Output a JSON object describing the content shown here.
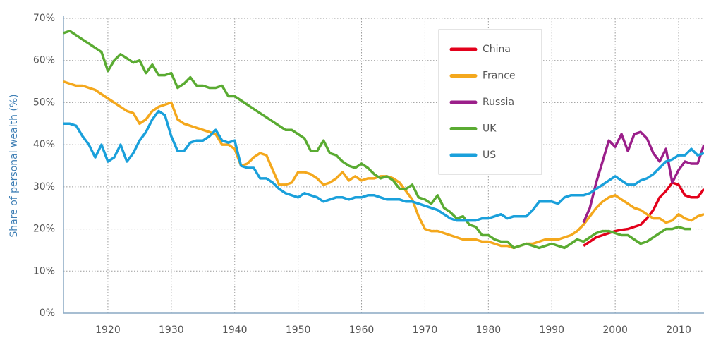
{
  "chart_data": {
    "type": "line",
    "y_label": "Share of personal wealth (%)",
    "xlim": [
      1913,
      2014
    ],
    "ylim": [
      0,
      70
    ],
    "xticks": [
      1920,
      1930,
      1940,
      1950,
      1960,
      1970,
      1980,
      1990,
      2000,
      2010
    ],
    "yticks": [
      {
        "value": 0,
        "label": "0%"
      },
      {
        "value": 10,
        "label": "10%"
      },
      {
        "value": 20,
        "label": "20%"
      },
      {
        "value": 30,
        "label": "30%"
      },
      {
        "value": 40,
        "label": "40%"
      },
      {
        "value": 50,
        "label": "50%"
      },
      {
        "value": 60,
        "label": "60%"
      },
      {
        "value": 70,
        "label": "70%"
      }
    ],
    "grid": true,
    "legend": "top-right",
    "series": [
      {
        "name": "China",
        "color": "#e3001b",
        "x": [
          1995,
          1996,
          1997,
          1998,
          1999,
          2000,
          2001,
          2002,
          2003,
          2004,
          2005,
          2006,
          2007,
          2008,
          2009,
          2010,
          2011,
          2012,
          2013,
          2014
        ],
        "values": [
          16,
          17,
          18,
          18.5,
          19,
          19.5,
          19.8,
          20,
          20.5,
          21,
          22.5,
          24.5,
          27.5,
          29,
          31,
          30.5,
          28,
          27.5,
          27.5,
          29.5
        ]
      },
      {
        "name": "France",
        "color": "#f4a81d",
        "x": [
          1913,
          1914,
          1915,
          1916,
          1917,
          1918,
          1919,
          1920,
          1921,
          1922,
          1923,
          1924,
          1925,
          1926,
          1927,
          1928,
          1929,
          1930,
          1931,
          1932,
          1933,
          1934,
          1935,
          1936,
          1937,
          1938,
          1939,
          1940,
          1941,
          1942,
          1943,
          1944,
          1945,
          1946,
          1947,
          1948,
          1949,
          1950,
          1951,
          1952,
          1953,
          1954,
          1955,
          1956,
          1957,
          1958,
          1959,
          1960,
          1961,
          1962,
          1963,
          1964,
          1965,
          1966,
          1967,
          1968,
          1969,
          1970,
          1971,
          1972,
          1973,
          1974,
          1975,
          1976,
          1977,
          1978,
          1979,
          1980,
          1981,
          1982,
          1983,
          1984,
          1985,
          1986,
          1987,
          1988,
          1989,
          1990,
          1991,
          1992,
          1993,
          1994,
          1995,
          1996,
          1997,
          1998,
          1999,
          2000,
          2001,
          2002,
          2003,
          2004,
          2005,
          2006,
          2007,
          2008,
          2009,
          2010,
          2011,
          2012,
          2013,
          2014
        ],
        "values": [
          55,
          54.5,
          54,
          54,
          53.5,
          53,
          52,
          51,
          50,
          49,
          48,
          47.5,
          45,
          46,
          48,
          49,
          49.5,
          50,
          46,
          45,
          44.5,
          44,
          43.5,
          43,
          42.5,
          40,
          40,
          39,
          35,
          35.5,
          37,
          38,
          37.5,
          34,
          30.5,
          30.5,
          31,
          33.5,
          33.5,
          33,
          32,
          30.5,
          31,
          32,
          33.5,
          31.5,
          32.5,
          31.5,
          32,
          32,
          32.5,
          32.5,
          32,
          31,
          29,
          27,
          23,
          20,
          19.5,
          19.5,
          19,
          18.5,
          18,
          17.5,
          17.5,
          17.5,
          17,
          17,
          16.5,
          16,
          16,
          15.5,
          16,
          16.5,
          16.5,
          17,
          17.5,
          17.5,
          17.5,
          18,
          18.5,
          19.5,
          21,
          23,
          25,
          26.5,
          27.5,
          28,
          27,
          26,
          25,
          24.5,
          23.5,
          22.5,
          22.5,
          21.5,
          22,
          23.5,
          22.5,
          22,
          23,
          23.5
        ]
      },
      {
        "name": "Russia",
        "color": "#9b1f8a",
        "x": [
          1995,
          1996,
          1997,
          1998,
          1999,
          2000,
          2001,
          2002,
          2003,
          2004,
          2005,
          2006,
          2007,
          2008,
          2009,
          2010,
          2011,
          2012,
          2013,
          2014
        ],
        "values": [
          21.5,
          25,
          31,
          36,
          41,
          39.5,
          42.5,
          38.5,
          42.5,
          43,
          41.5,
          38,
          36,
          39,
          31,
          34,
          36,
          35.5,
          35.5,
          40
        ]
      },
      {
        "name": "UK",
        "color": "#5aab32",
        "x": [
          1913,
          1914,
          1915,
          1916,
          1917,
          1918,
          1919,
          1920,
          1921,
          1922,
          1923,
          1924,
          1925,
          1926,
          1927,
          1928,
          1929,
          1930,
          1931,
          1932,
          1933,
          1934,
          1935,
          1936,
          1937,
          1938,
          1939,
          1940,
          1941,
          1942,
          1943,
          1944,
          1945,
          1946,
          1947,
          1948,
          1949,
          1950,
          1951,
          1952,
          1953,
          1954,
          1955,
          1956,
          1957,
          1958,
          1959,
          1960,
          1961,
          1962,
          1963,
          1964,
          1965,
          1966,
          1967,
          1968,
          1969,
          1970,
          1971,
          1972,
          1973,
          1974,
          1975,
          1976,
          1977,
          1978,
          1979,
          1980,
          1981,
          1982,
          1983,
          1984,
          1985,
          1986,
          1987,
          1988,
          1989,
          1990,
          1991,
          1992,
          1993,
          1994,
          1995,
          1996,
          1997,
          1998,
          1999,
          2000,
          2001,
          2002,
          2003,
          2004,
          2005,
          2006,
          2007,
          2008,
          2009,
          2010,
          2011,
          2012
        ],
        "values": [
          66.5,
          67,
          66,
          65,
          64,
          63,
          62,
          57.5,
          60,
          61.5,
          60.5,
          59.5,
          60,
          57,
          59,
          56.5,
          56.5,
          57,
          53.5,
          54.5,
          56,
          54,
          54,
          53.5,
          53.5,
          54,
          51.5,
          51.5,
          50.5,
          49.5,
          48.5,
          47.5,
          46.5,
          45.5,
          44.5,
          43.5,
          43.5,
          42.5,
          41.5,
          38.5,
          38.5,
          41,
          38,
          37.5,
          36,
          35,
          34.5,
          35.5,
          34.5,
          33,
          32,
          32.5,
          31.5,
          29.5,
          29.5,
          30.5,
          27.5,
          27,
          26,
          28,
          25,
          24,
          22.5,
          23,
          21,
          20.5,
          18.5,
          18.5,
          17.5,
          17,
          17,
          15.5,
          16,
          16.5,
          16,
          15.5,
          16,
          16.5,
          16,
          15.5,
          16.5,
          17.5,
          17,
          18,
          19,
          19.5,
          19.5,
          19,
          18.5,
          18.5,
          17.5,
          16.5,
          17,
          18,
          19,
          20,
          20,
          20.5,
          20,
          20
        ]
      },
      {
        "name": "US",
        "color": "#1aa0db",
        "x": [
          1913,
          1914,
          1915,
          1916,
          1917,
          1918,
          1919,
          1920,
          1921,
          1922,
          1923,
          1924,
          1925,
          1926,
          1927,
          1928,
          1929,
          1930,
          1931,
          1932,
          1933,
          1934,
          1935,
          1936,
          1937,
          1938,
          1939,
          1940,
          1941,
          1942,
          1943,
          1944,
          1945,
          1946,
          1947,
          1948,
          1949,
          1950,
          1951,
          1952,
          1953,
          1954,
          1955,
          1956,
          1957,
          1958,
          1959,
          1960,
          1961,
          1962,
          1963,
          1964,
          1965,
          1966,
          1967,
          1968,
          1969,
          1970,
          1971,
          1972,
          1973,
          1974,
          1975,
          1976,
          1977,
          1978,
          1979,
          1980,
          1981,
          1982,
          1983,
          1984,
          1985,
          1986,
          1987,
          1988,
          1989,
          1990,
          1991,
          1992,
          1993,
          1994,
          1995,
          1996,
          1997,
          1998,
          1999,
          2000,
          2001,
          2002,
          2003,
          2004,
          2005,
          2006,
          2007,
          2008,
          2009,
          2010,
          2011,
          2012,
          2013,
          2014
        ],
        "values": [
          45,
          45,
          44.5,
          42,
          40,
          37,
          40,
          36,
          37,
          40,
          36,
          38,
          41,
          43,
          46,
          48,
          47,
          42,
          38.5,
          38.5,
          40.5,
          41,
          41,
          42,
          43.5,
          41,
          40.5,
          41,
          35,
          34.5,
          34.5,
          32,
          32,
          31,
          29.5,
          28.5,
          28,
          27.5,
          28.5,
          28,
          27.5,
          26.5,
          27,
          27.5,
          27.5,
          27,
          27.5,
          27.5,
          28,
          28,
          27.5,
          27,
          27,
          27,
          26.5,
          26.5,
          26,
          25.5,
          25,
          24.5,
          23.5,
          22.5,
          22,
          22,
          22,
          22,
          22.5,
          22.5,
          23,
          23.5,
          22.5,
          23,
          23,
          23,
          24.5,
          26.5,
          26.5,
          26.5,
          26,
          27.5,
          28,
          28,
          28,
          28.5,
          29.5,
          30.5,
          31.5,
          32.5,
          31.5,
          30.5,
          30.5,
          31.5,
          32,
          33,
          34.5,
          36,
          36.5,
          37.5,
          37.5,
          39,
          37.5,
          38
        ]
      }
    ]
  }
}
